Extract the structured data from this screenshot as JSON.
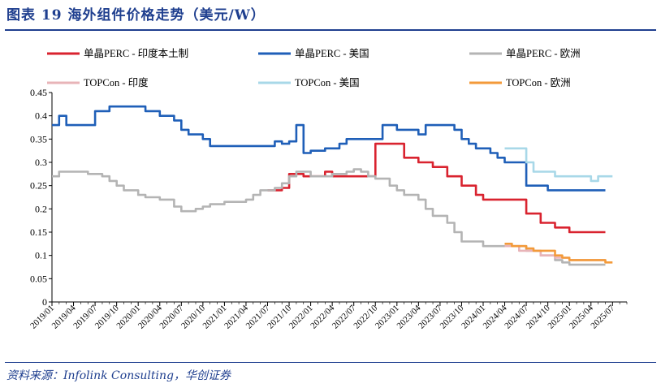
{
  "title": "图表 19   海外组件价格走势（美元/W）",
  "source": "资料来源：Infolink Consulting，华创证券",
  "chart_data": {
    "type": "line",
    "title": "海外组件价格走势（美元/W）",
    "ylim": [
      0,
      0.45
    ],
    "yticks": [
      "0",
      "0.05",
      "0.1",
      "0.15",
      "0.2",
      "0.25",
      "0.3",
      "0.35",
      "0.4",
      "0.45"
    ],
    "x_tick_labels": [
      "2019/01",
      "2019/04",
      "2019/07",
      "2019/10",
      "2020/01",
      "2020/04",
      "2020/07",
      "2020/10",
      "2021/01",
      "2021/04",
      "2021/07",
      "2021/10",
      "2022/01",
      "2022/04",
      "2022/07",
      "2022/10",
      "2023/01",
      "2023/04",
      "2023/07",
      "2023/10",
      "2024/01",
      "2024/04",
      "2024/07",
      "2024/10",
      "2025/01",
      "2025/04",
      "2025/07"
    ],
    "legend_position": "top",
    "series": [
      {
        "name": "单晶PERC - 印度本土制",
        "color": "#d9232f",
        "points": [
          [
            "2021/07",
            0.24
          ],
          [
            "2021/09",
            0.245
          ],
          [
            "2021/10",
            0.275
          ],
          [
            "2021/11",
            0.275
          ],
          [
            "2021/12",
            0.27
          ],
          [
            "2022/03",
            0.28
          ],
          [
            "2022/04",
            0.27
          ],
          [
            "2022/08",
            0.27
          ],
          [
            "2022/09",
            0.27
          ],
          [
            "2022/10",
            0.34
          ],
          [
            "2023/01",
            0.34
          ],
          [
            "2023/02",
            0.31
          ],
          [
            "2023/04",
            0.3
          ],
          [
            "2023/06",
            0.29
          ],
          [
            "2023/08",
            0.27
          ],
          [
            "2023/10",
            0.25
          ],
          [
            "2023/12",
            0.23
          ],
          [
            "2024/01",
            0.22
          ],
          [
            "2024/06",
            0.22
          ],
          [
            "2024/07",
            0.19
          ],
          [
            "2024/09",
            0.17
          ],
          [
            "2024/11",
            0.16
          ],
          [
            "2025/01",
            0.15
          ],
          [
            "2025/06",
            0.15
          ]
        ]
      },
      {
        "name": "单晶PERC - 美国",
        "color": "#1f5fb8",
        "points": [
          [
            "2019/01",
            0.38
          ],
          [
            "2019/02",
            0.4
          ],
          [
            "2019/03",
            0.38
          ],
          [
            "2019/06",
            0.38
          ],
          [
            "2019/07",
            0.41
          ],
          [
            "2019/09",
            0.42
          ],
          [
            "2019/12",
            0.42
          ],
          [
            "2020/02",
            0.41
          ],
          [
            "2020/03",
            0.41
          ],
          [
            "2020/04",
            0.4
          ],
          [
            "2020/06",
            0.39
          ],
          [
            "2020/07",
            0.37
          ],
          [
            "2020/08",
            0.36
          ],
          [
            "2020/10",
            0.35
          ],
          [
            "2020/11",
            0.335
          ],
          [
            "2021/07",
            0.335
          ],
          [
            "2021/08",
            0.345
          ],
          [
            "2021/09",
            0.34
          ],
          [
            "2021/10",
            0.345
          ],
          [
            "2021/11",
            0.35
          ],
          [
            "2021/11",
            0.38
          ],
          [
            "2021/12",
            0.32
          ],
          [
            "2022/01",
            0.325
          ],
          [
            "2022/03",
            0.33
          ],
          [
            "2022/05",
            0.34
          ],
          [
            "2022/06",
            0.35
          ],
          [
            "2022/10",
            0.35
          ],
          [
            "2022/11",
            0.38
          ],
          [
            "2022/12",
            0.38
          ],
          [
            "2023/01",
            0.37
          ],
          [
            "2023/03",
            0.37
          ],
          [
            "2023/04",
            0.36
          ],
          [
            "2023/05",
            0.38
          ],
          [
            "2023/08",
            0.38
          ],
          [
            "2023/09",
            0.37
          ],
          [
            "2023/10",
            0.35
          ],
          [
            "2023/11",
            0.34
          ],
          [
            "2023/12",
            0.33
          ],
          [
            "2024/02",
            0.32
          ],
          [
            "2024/03",
            0.31
          ],
          [
            "2024/04",
            0.3
          ],
          [
            "2024/06",
            0.3
          ],
          [
            "2024/07",
            0.25
          ],
          [
            "2024/09",
            0.25
          ],
          [
            "2024/10",
            0.24
          ],
          [
            "2025/06",
            0.24
          ]
        ]
      },
      {
        "name": "单晶PERC - 欧洲",
        "color": "#b4b4b4",
        "points": [
          [
            "2019/01",
            0.27
          ],
          [
            "2019/02",
            0.28
          ],
          [
            "2019/05",
            0.28
          ],
          [
            "2019/06",
            0.275
          ],
          [
            "2019/08",
            0.27
          ],
          [
            "2019/09",
            0.26
          ],
          [
            "2019/10",
            0.25
          ],
          [
            "2019/11",
            0.24
          ],
          [
            "2020/01",
            0.23
          ],
          [
            "2020/02",
            0.225
          ],
          [
            "2020/03",
            0.225
          ],
          [
            "2020/04",
            0.22
          ],
          [
            "2020/06",
            0.205
          ],
          [
            "2020/07",
            0.195
          ],
          [
            "2020/08",
            0.195
          ],
          [
            "2020/09",
            0.2
          ],
          [
            "2020/10",
            0.205
          ],
          [
            "2020/11",
            0.21
          ],
          [
            "2021/01",
            0.215
          ],
          [
            "2021/03",
            0.215
          ],
          [
            "2021/04",
            0.22
          ],
          [
            "2021/05",
            0.23
          ],
          [
            "2021/06",
            0.24
          ],
          [
            "2021/08",
            0.245
          ],
          [
            "2021/09",
            0.255
          ],
          [
            "2021/10",
            0.27
          ],
          [
            "2021/11",
            0.28
          ],
          [
            "2022/01",
            0.27
          ],
          [
            "2022/04",
            0.275
          ],
          [
            "2022/06",
            0.28
          ],
          [
            "2022/07",
            0.285
          ],
          [
            "2022/08",
            0.28
          ],
          [
            "2022/09",
            0.27
          ],
          [
            "2022/10",
            0.265
          ],
          [
            "2022/12",
            0.25
          ],
          [
            "2023/01",
            0.24
          ],
          [
            "2023/02",
            0.23
          ],
          [
            "2023/04",
            0.22
          ],
          [
            "2023/05",
            0.2
          ],
          [
            "2023/06",
            0.185
          ],
          [
            "2023/08",
            0.17
          ],
          [
            "2023/09",
            0.15
          ],
          [
            "2023/10",
            0.13
          ],
          [
            "2023/12",
            0.13
          ],
          [
            "2024/01",
            0.12
          ],
          [
            "2024/04",
            0.12
          ],
          [
            "2024/07",
            0.11
          ],
          [
            "2024/09",
            0.1
          ],
          [
            "2024/11",
            0.09
          ],
          [
            "2024/12",
            0.085
          ],
          [
            "2025/01",
            0.08
          ],
          [
            "2025/06",
            0.08
          ]
        ]
      },
      {
        "name": "TOPCon - 印度",
        "color": "#e8b4b8",
        "points": [
          [
            "2024/04",
            0.12
          ],
          [
            "2024/06",
            0.11
          ],
          [
            "2024/09",
            0.1
          ],
          [
            "2024/11",
            0.095
          ],
          [
            "2025/01",
            0.09
          ],
          [
            "2025/06",
            0.09
          ]
        ]
      },
      {
        "name": "TOPCon - 美国",
        "color": "#a8d8e8",
        "points": [
          [
            "2024/04",
            0.33
          ],
          [
            "2024/06",
            0.33
          ],
          [
            "2024/07",
            0.3
          ],
          [
            "2024/08",
            0.28
          ],
          [
            "2024/10",
            0.28
          ],
          [
            "2024/11",
            0.27
          ],
          [
            "2025/03",
            0.27
          ],
          [
            "2025/04",
            0.26
          ],
          [
            "2025/05",
            0.27
          ],
          [
            "2025/07",
            0.27
          ]
        ]
      },
      {
        "name": "TOPCon - 欧洲",
        "color": "#f39a3a",
        "points": [
          [
            "2024/04",
            0.125
          ],
          [
            "2024/05",
            0.12
          ],
          [
            "2024/07",
            0.115
          ],
          [
            "2024/08",
            0.11
          ],
          [
            "2024/11",
            0.1
          ],
          [
            "2024/12",
            0.095
          ],
          [
            "2025/01",
            0.09
          ],
          [
            "2025/05",
            0.09
          ],
          [
            "2025/06",
            0.085
          ],
          [
            "2025/07",
            0.085
          ]
        ]
      }
    ]
  }
}
